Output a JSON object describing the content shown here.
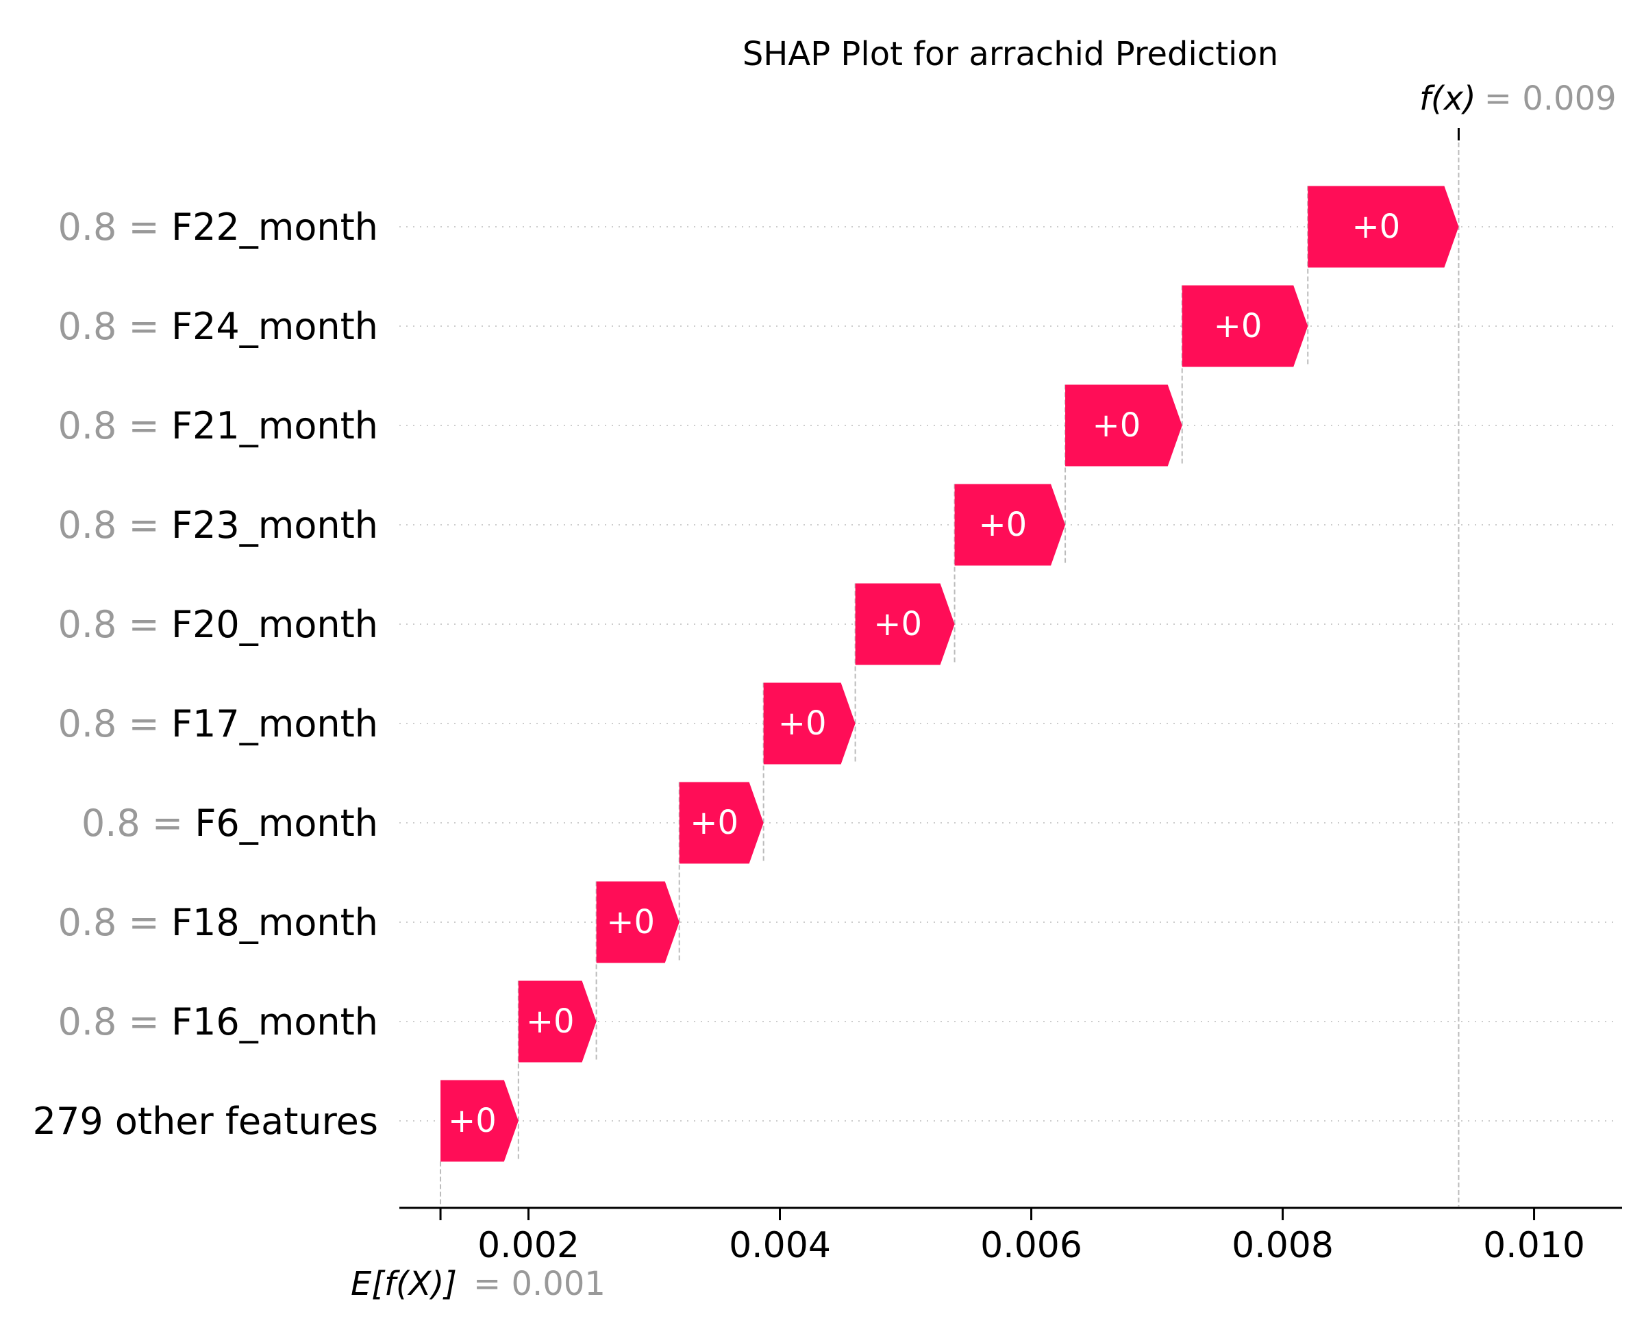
{
  "chart_data": {
    "type": "waterfall",
    "title": "SHAP Plot for arrachid Prediction",
    "base_value": 0.0013,
    "output_value": 0.0094,
    "xlim": [
      0.001,
      0.0107
    ],
    "x_ticks": [
      {
        "value": 0.002,
        "label": "0.002"
      },
      {
        "value": 0.004,
        "label": "0.004"
      },
      {
        "value": 0.006,
        "label": "0.006"
      },
      {
        "value": 0.008,
        "label": "0.008"
      },
      {
        "value": 0.01,
        "label": "0.010"
      }
    ],
    "features": [
      {
        "value_label": "0.8",
        "name": "F22_month",
        "start": 0.0082,
        "end": 0.0094,
        "label": "+0"
      },
      {
        "value_label": "0.8",
        "name": "F24_month",
        "start": 0.0072,
        "end": 0.0082,
        "label": "+0"
      },
      {
        "value_label": "0.8",
        "name": "F21_month",
        "start": 0.00627,
        "end": 0.0072,
        "label": "+0"
      },
      {
        "value_label": "0.8",
        "name": "F23_month",
        "start": 0.00539,
        "end": 0.00627,
        "label": "+0"
      },
      {
        "value_label": "0.8",
        "name": "F20_month",
        "start": 0.0046,
        "end": 0.00539,
        "label": "+0"
      },
      {
        "value_label": "0.8",
        "name": "F17_month",
        "start": 0.00387,
        "end": 0.0046,
        "label": "+0"
      },
      {
        "value_label": "0.8",
        "name": "F6_month",
        "start": 0.0032,
        "end": 0.00387,
        "label": "+0"
      },
      {
        "value_label": "0.8",
        "name": "F18_month",
        "start": 0.00254,
        "end": 0.0032,
        "label": "+0"
      },
      {
        "value_label": "0.8",
        "name": "F16_month",
        "start": 0.00192,
        "end": 0.00254,
        "label": "+0"
      },
      {
        "value_label": "",
        "name": "279 other features",
        "start": 0.0013,
        "end": 0.00192,
        "label": "+0"
      }
    ],
    "annotations": {
      "fx_label": "f(x)",
      "fx_value": "= 0.009",
      "efx_label": "E[f(X)]",
      "efx_value": "= 0.001"
    },
    "colors": {
      "positive": "#ff0d57",
      "muted_text": "#999999",
      "guide": "#bbbbbb"
    }
  }
}
